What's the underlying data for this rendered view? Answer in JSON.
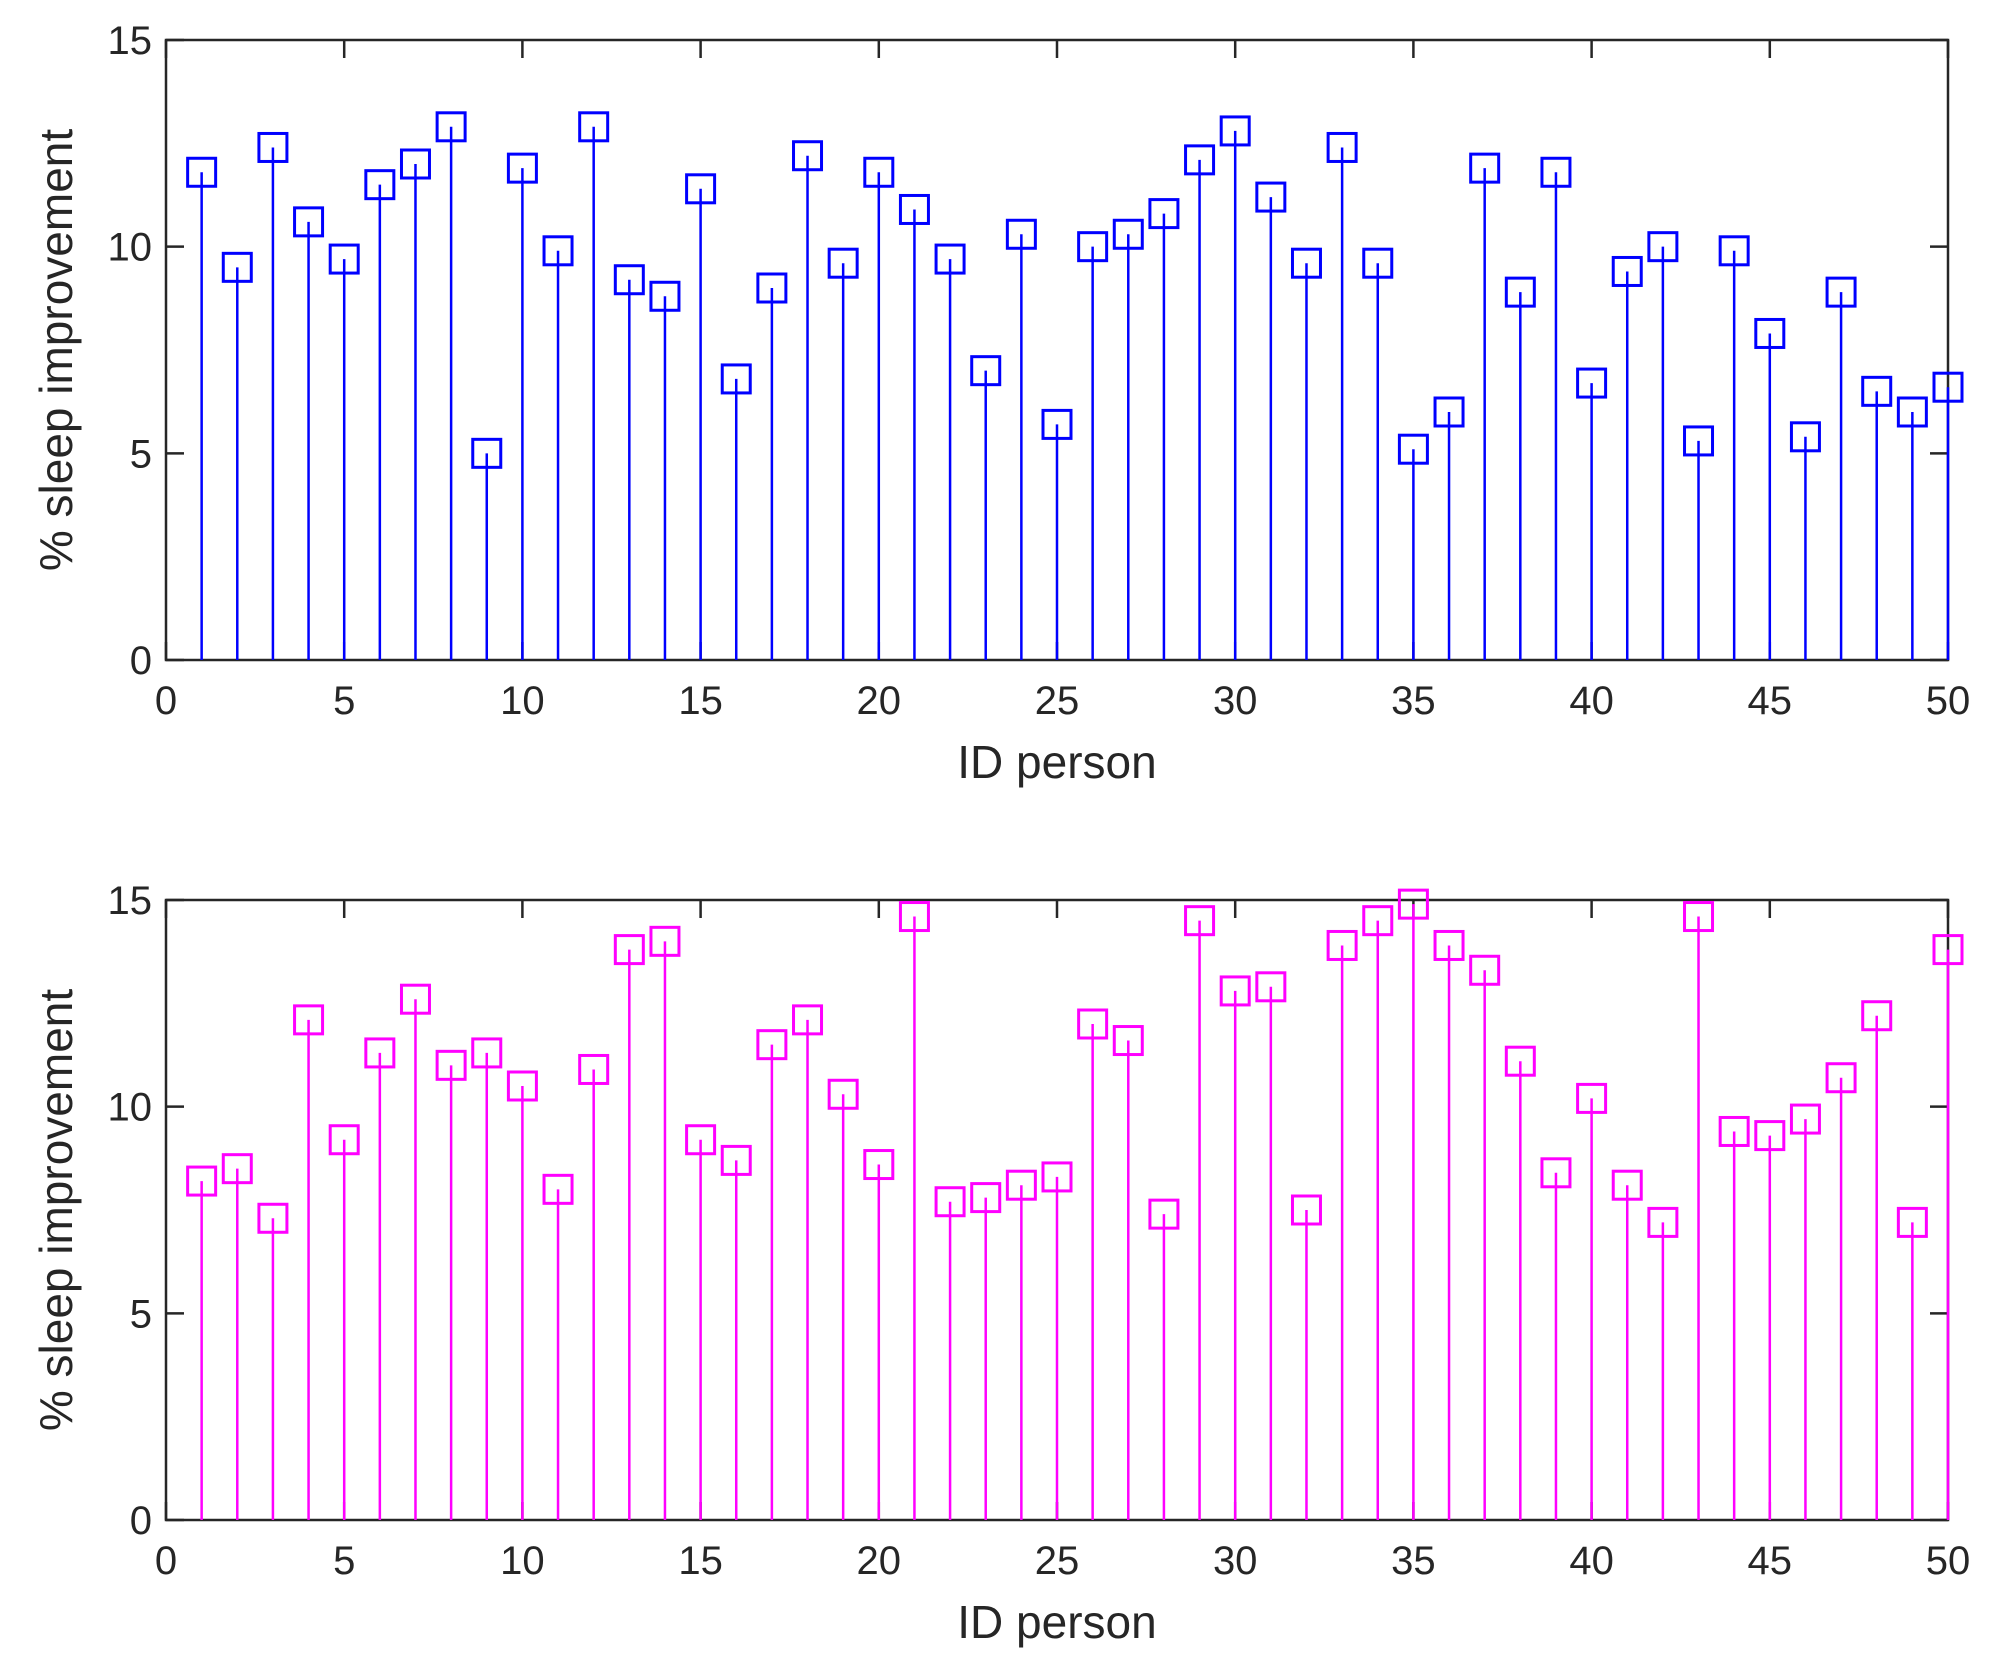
{
  "chart_data": [
    {
      "type": "stem",
      "color": "#0000ff",
      "marker": "square",
      "xlabel": "ID person",
      "ylabel": "% sleep improvement",
      "xlim": [
        0,
        50
      ],
      "ylim": [
        0,
        15
      ],
      "xticks": [
        0,
        5,
        10,
        15,
        20,
        25,
        30,
        35,
        40,
        45,
        50
      ],
      "yticks": [
        0,
        5,
        10,
        15
      ],
      "x": [
        1,
        2,
        3,
        4,
        5,
        6,
        7,
        8,
        9,
        10,
        11,
        12,
        13,
        14,
        15,
        16,
        17,
        18,
        19,
        20,
        21,
        22,
        23,
        24,
        25,
        26,
        27,
        28,
        29,
        30,
        31,
        32,
        33,
        34,
        35,
        36,
        37,
        38,
        39,
        40,
        41,
        42,
        43,
        44,
        45,
        46,
        47,
        48,
        49,
        50
      ],
      "values": [
        11.8,
        9.5,
        12.4,
        10.6,
        9.7,
        11.5,
        12.0,
        12.9,
        5.0,
        11.9,
        9.9,
        12.9,
        9.2,
        8.8,
        11.4,
        6.8,
        9.0,
        12.2,
        9.6,
        11.8,
        10.9,
        9.7,
        7.0,
        10.3,
        5.7,
        10.0,
        10.3,
        10.8,
        12.1,
        12.8,
        11.2,
        9.6,
        12.4,
        9.6,
        5.1,
        6.0,
        11.9,
        8.9,
        11.8,
        6.7,
        9.4,
        10.0,
        5.3,
        9.9,
        7.9,
        5.4,
        8.9,
        6.5,
        6.0,
        6.6
      ]
    },
    {
      "type": "stem",
      "color": "#ff00ff",
      "marker": "square",
      "xlabel": "ID person",
      "ylabel": "% sleep improvement",
      "xlim": [
        0,
        50
      ],
      "ylim": [
        0,
        15
      ],
      "xticks": [
        0,
        5,
        10,
        15,
        20,
        25,
        30,
        35,
        40,
        45,
        50
      ],
      "yticks": [
        0,
        5,
        10,
        15
      ],
      "x": [
        1,
        2,
        3,
        4,
        5,
        6,
        7,
        8,
        9,
        10,
        11,
        12,
        13,
        14,
        15,
        16,
        17,
        18,
        19,
        20,
        21,
        22,
        23,
        24,
        25,
        26,
        27,
        28,
        29,
        30,
        31,
        32,
        33,
        34,
        35,
        36,
        37,
        38,
        39,
        40,
        41,
        42,
        43,
        44,
        45,
        46,
        47,
        48,
        49,
        50
      ],
      "values": [
        8.2,
        8.5,
        7.3,
        12.1,
        9.2,
        11.3,
        12.6,
        11.0,
        11.3,
        10.5,
        8.0,
        10.9,
        13.8,
        14.0,
        9.2,
        8.7,
        11.5,
        12.1,
        10.3,
        8.6,
        14.6,
        7.7,
        7.8,
        8.1,
        8.3,
        12.0,
        11.6,
        7.4,
        14.5,
        12.8,
        12.9,
        7.5,
        13.9,
        14.5,
        14.9,
        13.9,
        13.3,
        11.1,
        8.4,
        10.2,
        8.1,
        7.2,
        14.6,
        9.4,
        9.3,
        9.7,
        10.7,
        12.2,
        7.2,
        13.8
      ]
    }
  ]
}
